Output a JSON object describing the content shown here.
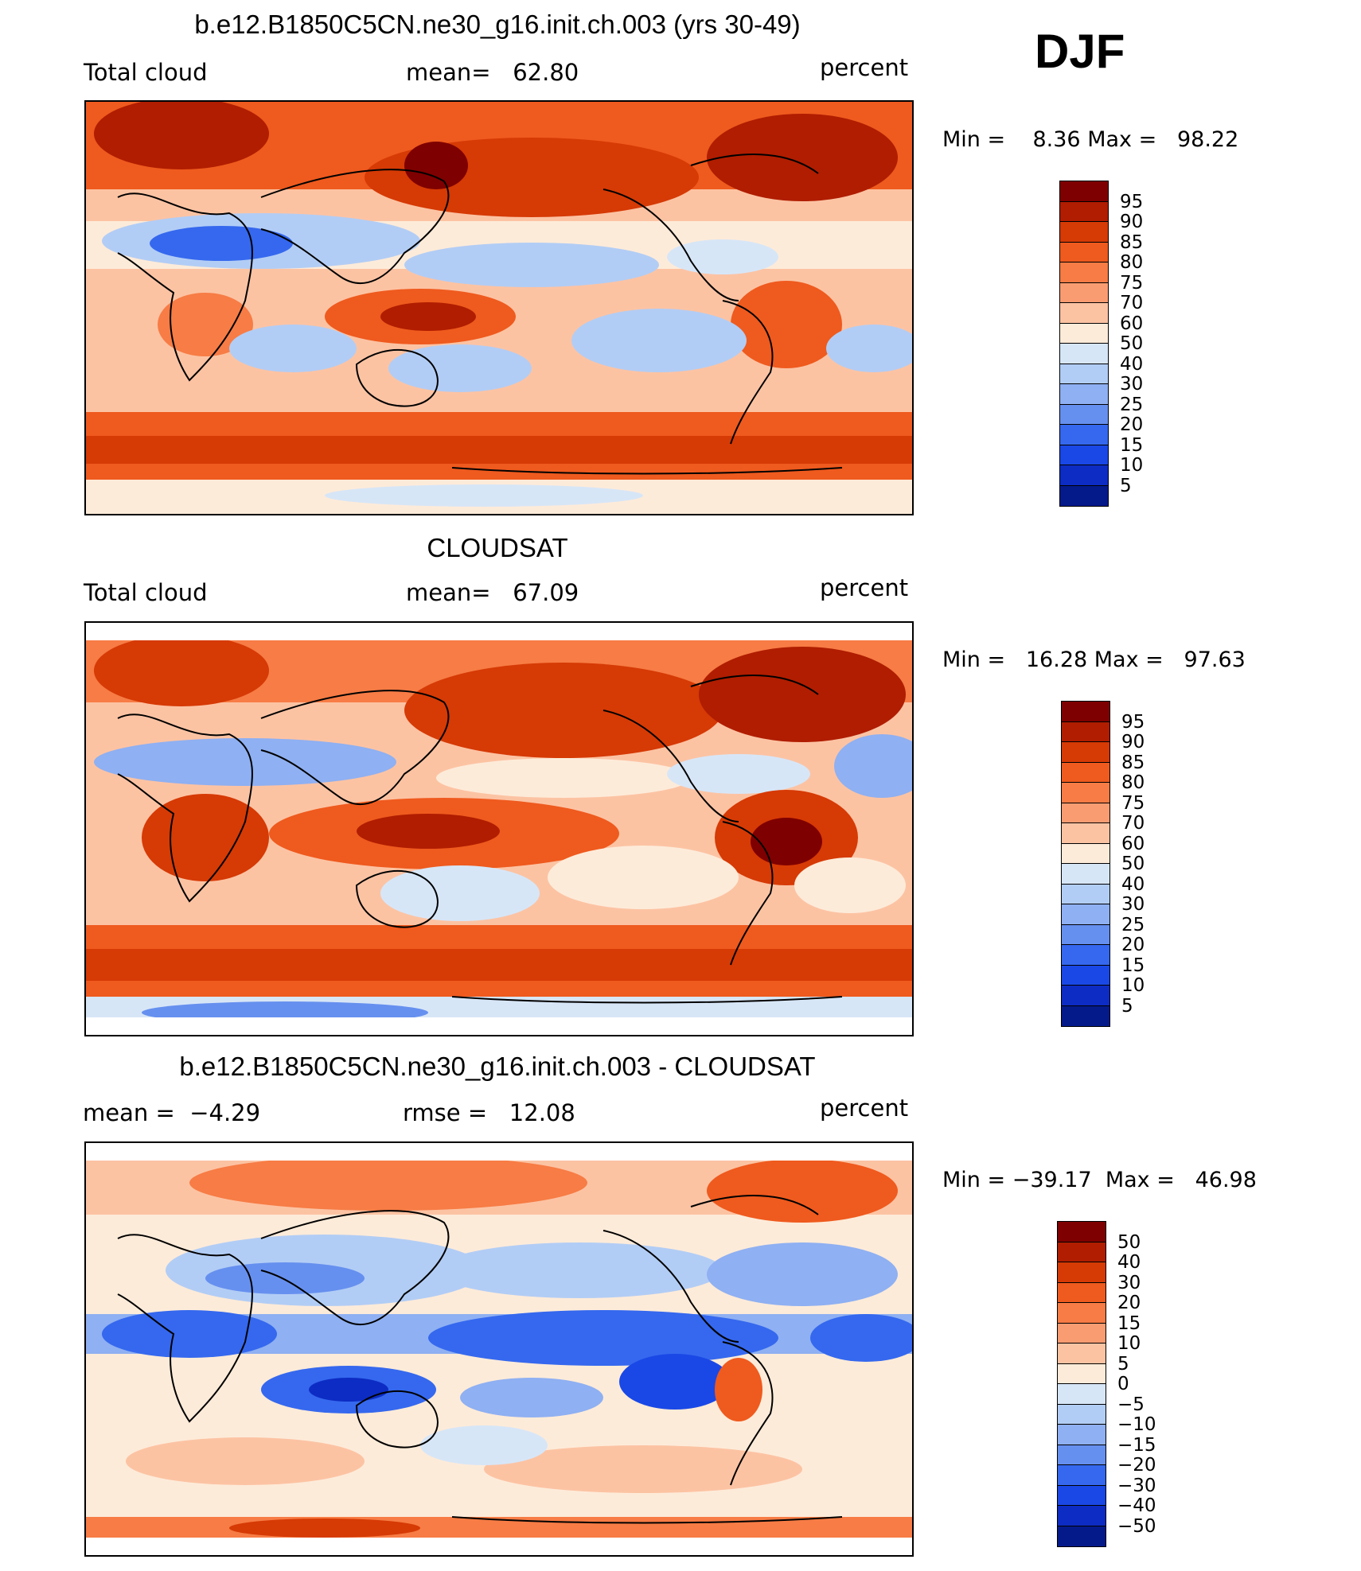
{
  "season": "DJF",
  "panels": [
    {
      "title": "b.e12.B1850C5CN.ne30_g16.init.ch.003 (yrs 30-49)",
      "left_label": "Total cloud",
      "mid_label": "mean=",
      "mid_value": "62.80",
      "units": "percent",
      "min_label": "Min =",
      "min_value": "8.36",
      "max_label": "Max =",
      "max_value": "98.22",
      "colorbar_labels": [
        "95",
        "90",
        "85",
        "80",
        "75",
        "70",
        "60",
        "50",
        "40",
        "30",
        "25",
        "20",
        "15",
        "10",
        "5"
      ]
    },
    {
      "title": "CLOUDSAT",
      "left_label": "Total cloud",
      "mid_label": "mean=",
      "mid_value": "67.09",
      "units": "percent",
      "min_label": "Min =",
      "min_value": "16.28",
      "max_label": "Max =",
      "max_value": "97.63",
      "colorbar_labels": [
        "95",
        "90",
        "85",
        "80",
        "75",
        "70",
        "60",
        "50",
        "40",
        "30",
        "25",
        "20",
        "15",
        "10",
        "5"
      ]
    },
    {
      "title": "b.e12.B1850C5CN.ne30_g16.init.ch.003 - CLOUDSAT",
      "left_label": "mean =",
      "left_value": "−4.29",
      "mid_label": "rmse =",
      "mid_value": "12.08",
      "units": "percent",
      "min_label": "Min =",
      "min_value": "−39.17",
      "max_label": "Max =",
      "max_value": "46.98",
      "colorbar_labels": [
        "50",
        "40",
        "30",
        "20",
        "15",
        "10",
        "5",
        "0",
        "−5",
        "−10",
        "−15",
        "−20",
        "−30",
        "−40",
        "−50"
      ]
    }
  ],
  "colors": {
    "scale": [
      "#7f0000",
      "#b01d00",
      "#d63a05",
      "#ef5a1e",
      "#f77c45",
      "#fa9c72",
      "#fcc3a3",
      "#fdebd9",
      "#d7e6f7",
      "#b2cdf5",
      "#8fb0f2",
      "#6690ef",
      "#3568ee",
      "#1a48e6",
      "#0d2cc3",
      "#041a8a"
    ]
  }
}
